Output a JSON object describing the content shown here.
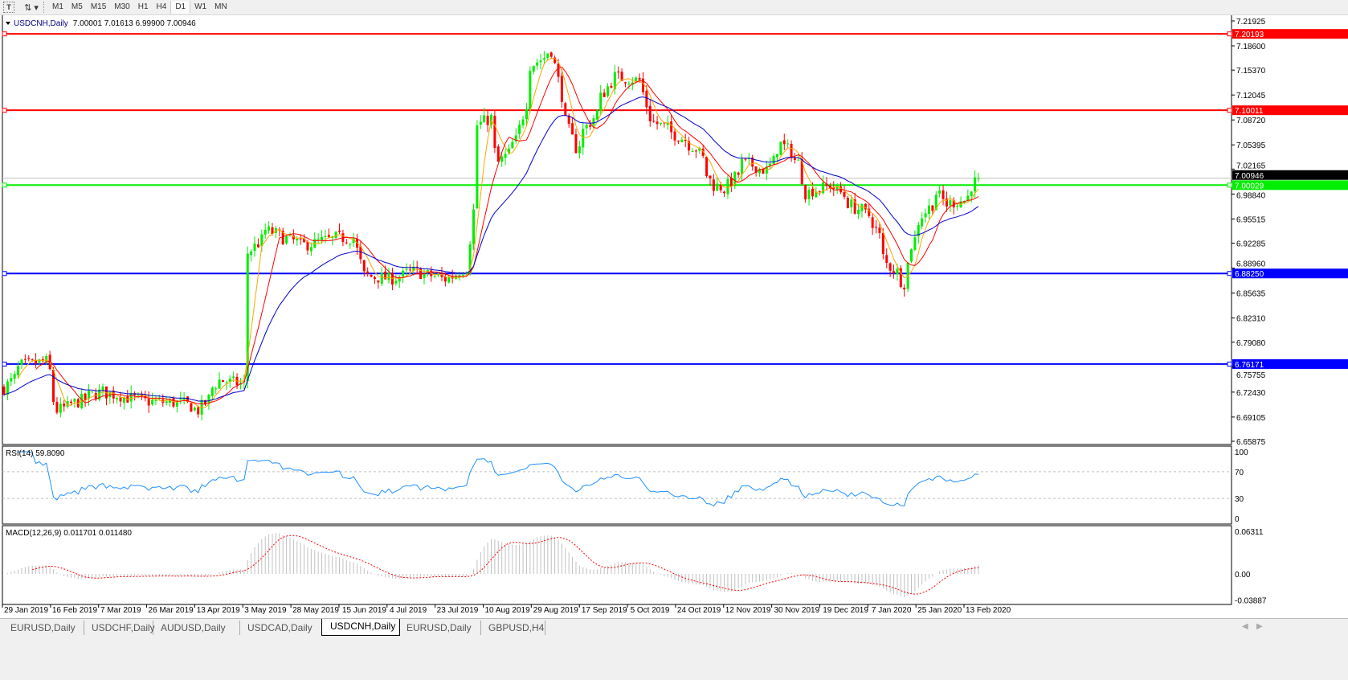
{
  "toolbar": {
    "icons": [
      "text-tool-icon",
      "arrows-tool-icon"
    ],
    "timeframes": [
      "M1",
      "M5",
      "M15",
      "M30",
      "H1",
      "H4",
      "D1",
      "W1",
      "MN"
    ],
    "active_timeframe": "D1"
  },
  "chart": {
    "symbol_label": "USDCNH,Daily",
    "ohlc": "7.00001 7.01613 6.99900 7.00946",
    "current_price": "7.00946",
    "price_ticks": [
      "7.21925",
      "7.18600",
      "7.15370",
      "7.12045",
      "7.08720",
      "7.05395",
      "7.02165",
      "6.98840",
      "6.95515",
      "6.92285",
      "6.88960",
      "6.85635",
      "6.82310",
      "6.79080",
      "6.75755",
      "6.72430",
      "6.69105",
      "6.65875"
    ],
    "horizontal_lines": [
      {
        "price": "7.20193",
        "color": "#ff0000"
      },
      {
        "price": "7.10011",
        "color": "#ff0000"
      },
      {
        "price": "7.00029",
        "color": "#00ee00"
      },
      {
        "price": "6.88250",
        "color": "#0000ff"
      },
      {
        "price": "6.76171",
        "color": "#0000ff"
      }
    ],
    "colors": {
      "bull": "#00ee00",
      "bear": "#ff0000",
      "ma_fast": "#ffa500",
      "ma_mid": "#ff0000",
      "ma_slow": "#0000cc",
      "rsi": "#1e90ff",
      "macd_hist": "#c0c0c0",
      "macd_signal": "#ff0000"
    },
    "price_path": [
      [
        "2019-01-29",
        6.73
      ],
      [
        "2019-02-05",
        6.76
      ],
      [
        "2019-02-14",
        6.765
      ],
      [
        "2019-02-19",
        6.7
      ],
      [
        "2019-02-26",
        6.71
      ],
      [
        "2019-03-08",
        6.725
      ],
      [
        "2019-03-26",
        6.712
      ],
      [
        "2019-04-09",
        6.71
      ],
      [
        "2019-04-16",
        6.7
      ],
      [
        "2019-04-24",
        6.74
      ],
      [
        "2019-05-03",
        6.735
      ],
      [
        "2019-05-06",
        6.91
      ],
      [
        "2019-05-13",
        6.94
      ],
      [
        "2019-05-27",
        6.92
      ],
      [
        "2019-06-10",
        6.93
      ],
      [
        "2019-06-17",
        6.93
      ],
      [
        "2019-06-20",
        6.88
      ],
      [
        "2019-07-01",
        6.875
      ],
      [
        "2019-07-10",
        6.885
      ],
      [
        "2019-07-23",
        6.875
      ],
      [
        "2019-07-31",
        6.89
      ],
      [
        "2019-08-05",
        7.08
      ],
      [
        "2019-08-09",
        7.09
      ],
      [
        "2019-08-13",
        7.03
      ],
      [
        "2019-08-20",
        7.06
      ],
      [
        "2019-08-26",
        7.16
      ],
      [
        "2019-09-03",
        7.18
      ],
      [
        "2019-09-06",
        7.12
      ],
      [
        "2019-09-12",
        7.05
      ],
      [
        "2019-09-19",
        7.09
      ],
      [
        "2019-09-27",
        7.145
      ],
      [
        "2019-10-08",
        7.14
      ],
      [
        "2019-10-11",
        7.09
      ],
      [
        "2019-10-21",
        7.07
      ],
      [
        "2019-10-30",
        7.05
      ],
      [
        "2019-11-06",
        7.0
      ],
      [
        "2019-11-11",
        6.995
      ],
      [
        "2019-11-18",
        7.03
      ],
      [
        "2019-11-27",
        7.02
      ],
      [
        "2019-12-03",
        7.055
      ],
      [
        "2019-12-10",
        7.03
      ],
      [
        "2019-12-12",
        6.99
      ],
      [
        "2019-12-23",
        7.0
      ],
      [
        "2020-01-01",
        6.97
      ],
      [
        "2020-01-07",
        6.96
      ],
      [
        "2020-01-14",
        6.895
      ],
      [
        "2020-01-21",
        6.87
      ],
      [
        "2020-01-23",
        6.92
      ],
      [
        "2020-01-28",
        6.96
      ],
      [
        "2020-02-03",
        6.99
      ],
      [
        "2020-02-06",
        6.975
      ],
      [
        "2020-02-13",
        6.98
      ],
      [
        "2020-02-19",
        7.00946
      ]
    ],
    "date_labels": [
      "29 Jan 2019",
      "16 Feb 2019",
      "7 Mar 2019",
      "26 Mar 2019",
      "13 Apr 2019",
      "3 May 2019",
      "28 May 2019",
      "15 Jun 2019",
      "4 Jul 2019",
      "23 Jul 2019",
      "10 Aug 2019",
      "29 Aug 2019",
      "17 Sep 2019",
      "5 Oct 2019",
      "24 Oct 2019",
      "12 Nov 2019",
      "30 Nov 2019",
      "19 Dec 2019",
      "7 Jan 2020",
      "25 Jan 2020",
      "13 Feb 2020"
    ]
  },
  "rsi": {
    "label": "RSI(14) 59.8090",
    "ticks": [
      "100",
      "70",
      "30",
      "0"
    ]
  },
  "macd": {
    "label": "MACD(12,26,9) 0.011701 0.011480",
    "ticks": [
      "0.06311",
      "0.00",
      "-0.03887"
    ]
  },
  "tabs": [
    {
      "label": "EURUSD,Daily"
    },
    {
      "label": "USDCHF,Daily"
    },
    {
      "label": "AUDUSD,Daily"
    },
    {
      "label": "USDCAD,Daily"
    },
    {
      "label": "USDCNH,Daily",
      "active": true
    },
    {
      "label": "EURUSD,Daily"
    },
    {
      "label": "GBPUSD,H4"
    }
  ]
}
